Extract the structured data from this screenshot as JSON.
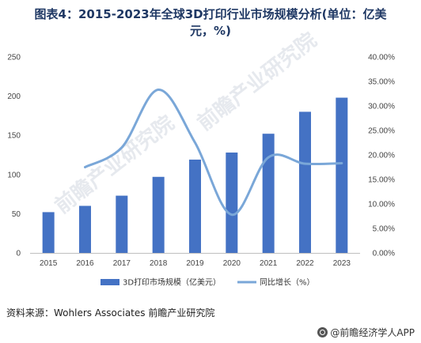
{
  "title_line1": "图表4：2015-2023年全球3D打印行业市场规模分析(单位：亿美",
  "title_line2": "元，%)",
  "chart_data": {
    "type": "bar",
    "categories": [
      "2015",
      "2016",
      "2017",
      "2018",
      "2019",
      "2020",
      "2021",
      "2022",
      "2023"
    ],
    "series": [
      {
        "name": "3D打印市场规模（亿美元）",
        "type": "bar",
        "axis": "left",
        "color": "#4472c4",
        "values": [
          52,
          60,
          73,
          97,
          119,
          128,
          152,
          180,
          198
        ]
      },
      {
        "name": "同比增长（%）",
        "type": "line",
        "axis": "right",
        "color": "#7aa7d8",
        "values": [
          null,
          17.5,
          21.5,
          33.3,
          22.5,
          7.8,
          19.5,
          18.2,
          18.3
        ]
      }
    ],
    "y_left": {
      "min": 0,
      "max": 250,
      "ticks": [
        "0",
        "50",
        "100",
        "150",
        "200",
        "250"
      ],
      "tick_values": [
        0,
        50,
        100,
        150,
        200,
        250
      ]
    },
    "y_right": {
      "min": 0,
      "max": 40,
      "ticks": [
        "0.00%",
        "5.00%",
        "10.00%",
        "15.00%",
        "20.00%",
        "25.00%",
        "30.00%",
        "35.00%",
        "40.00%"
      ],
      "tick_values": [
        0,
        5,
        10,
        15,
        20,
        25,
        30,
        35,
        40
      ]
    },
    "grid": false,
    "legend_position": "bottom"
  },
  "source": "资料来源：Wohlers Associates 前瞻产业研究院",
  "brand": "@前瞻经济学人APP",
  "watermark": "前瞻产业研究院",
  "colors": {
    "title": "#1f3864",
    "bar": "#4472c4",
    "line": "#7aa7d8"
  }
}
